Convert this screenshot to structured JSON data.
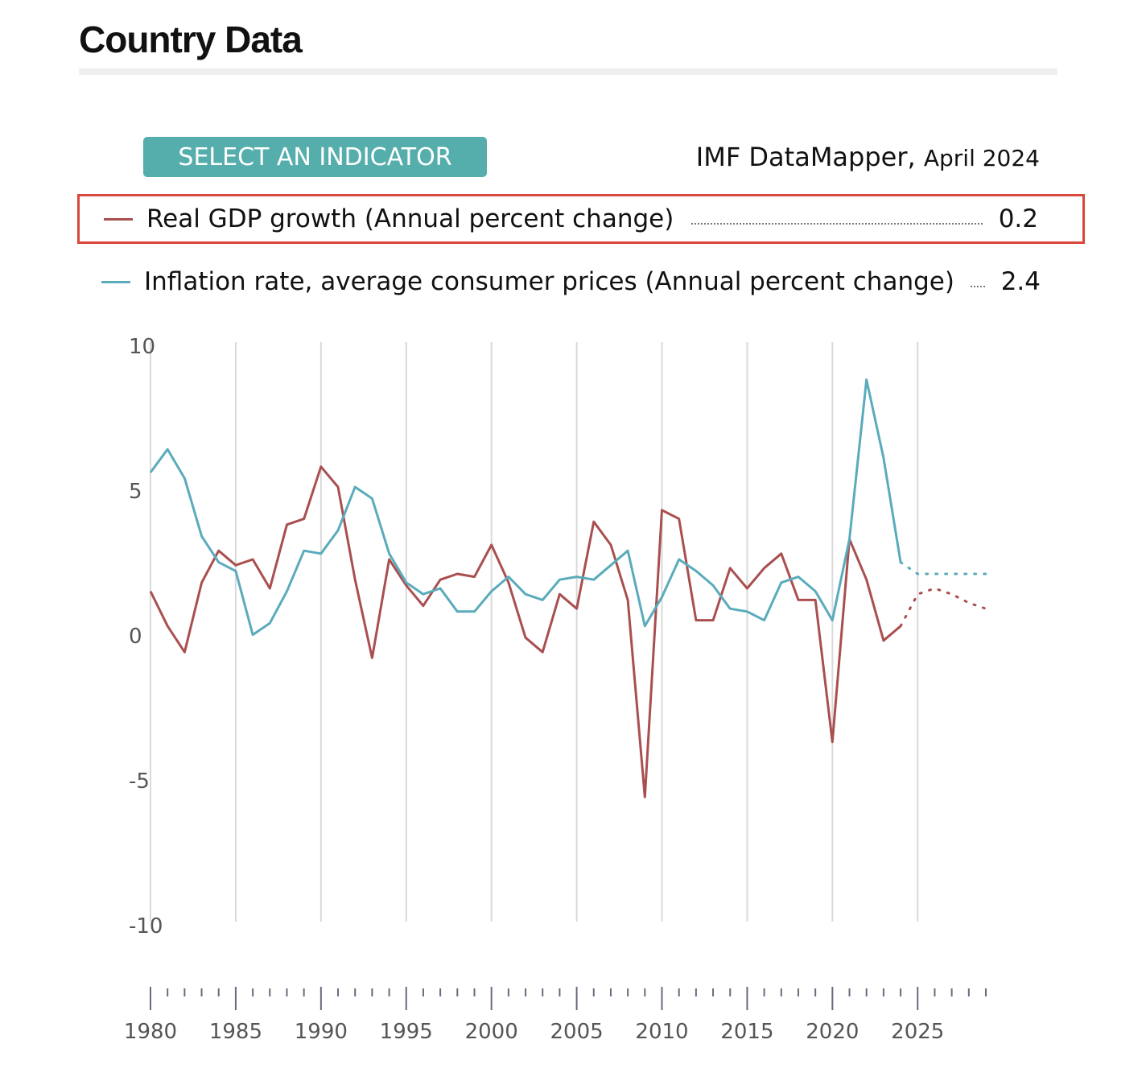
{
  "page": {
    "title": "Country Data",
    "select_button_label": "SELECT AN INDICATOR",
    "source_name": "IMF DataMapper,",
    "source_date": "April 2024"
  },
  "legend": [
    {
      "label": "Real GDP growth (Annual percent change)",
      "value": "0.2",
      "color": "#a94f4f",
      "selected": true
    },
    {
      "label": "Inflation rate, average consumer prices (Annual percent change)",
      "value": "2.4",
      "color": "#5aabbb",
      "selected": false
    }
  ],
  "chart_data": {
    "type": "line",
    "title": "",
    "xlabel": "",
    "ylabel": "",
    "xlim": [
      1980,
      2029
    ],
    "ylim": [
      -10,
      10
    ],
    "y_ticks": [
      "10",
      "5",
      "0",
      "-5",
      "-10"
    ],
    "x_tick_labels": [
      "1980",
      "1985",
      "1990",
      "1995",
      "2000",
      "2005",
      "2010",
      "2015",
      "2020",
      "2025"
    ],
    "grid": "vertical",
    "last_actual_year": 2024,
    "projection_style": "dotted",
    "x": [
      1980,
      1981,
      1982,
      1983,
      1984,
      1985,
      1986,
      1987,
      1988,
      1989,
      1990,
      1991,
      1992,
      1993,
      1994,
      1995,
      1996,
      1997,
      1998,
      1999,
      2000,
      2001,
      2002,
      2003,
      2004,
      2005,
      2006,
      2007,
      2008,
      2009,
      2010,
      2011,
      2012,
      2013,
      2014,
      2015,
      2016,
      2017,
      2018,
      2019,
      2020,
      2021,
      2022,
      2023,
      2024,
      2025,
      2026,
      2027,
      2028,
      2029
    ],
    "series": [
      {
        "name": "Real GDP growth (Annual percent change)",
        "color": "#a94f4f",
        "values": [
          1.4,
          0.2,
          -0.7,
          1.7,
          2.8,
          2.3,
          2.5,
          1.5,
          3.7,
          3.9,
          5.7,
          5.0,
          1.8,
          -0.9,
          2.5,
          1.6,
          0.9,
          1.8,
          2.0,
          1.9,
          3.0,
          1.7,
          -0.2,
          -0.7,
          1.3,
          0.8,
          3.8,
          3.0,
          1.1,
          -5.7,
          4.2,
          3.9,
          0.4,
          0.4,
          2.2,
          1.5,
          2.2,
          2.7,
          1.1,
          1.1,
          -3.8,
          3.2,
          1.8,
          -0.3,
          0.2,
          1.3,
          1.5,
          1.3,
          1.0,
          0.8
        ]
      },
      {
        "name": "Inflation rate, average consumer prices (Annual percent change)",
        "color": "#5aabbb",
        "values": [
          5.5,
          6.3,
          5.3,
          3.3,
          2.4,
          2.1,
          -0.1,
          0.3,
          1.4,
          2.8,
          2.7,
          3.5,
          5.0,
          4.6,
          2.7,
          1.7,
          1.3,
          1.5,
          0.7,
          0.7,
          1.4,
          1.9,
          1.3,
          1.1,
          1.8,
          1.9,
          1.8,
          2.3,
          2.8,
          0.2,
          1.2,
          2.5,
          2.1,
          1.6,
          0.8,
          0.7,
          0.4,
          1.7,
          1.9,
          1.4,
          0.4,
          3.2,
          8.7,
          6.0,
          2.4,
          2.0,
          2.0,
          2.0,
          2.0,
          2.0
        ]
      }
    ]
  }
}
